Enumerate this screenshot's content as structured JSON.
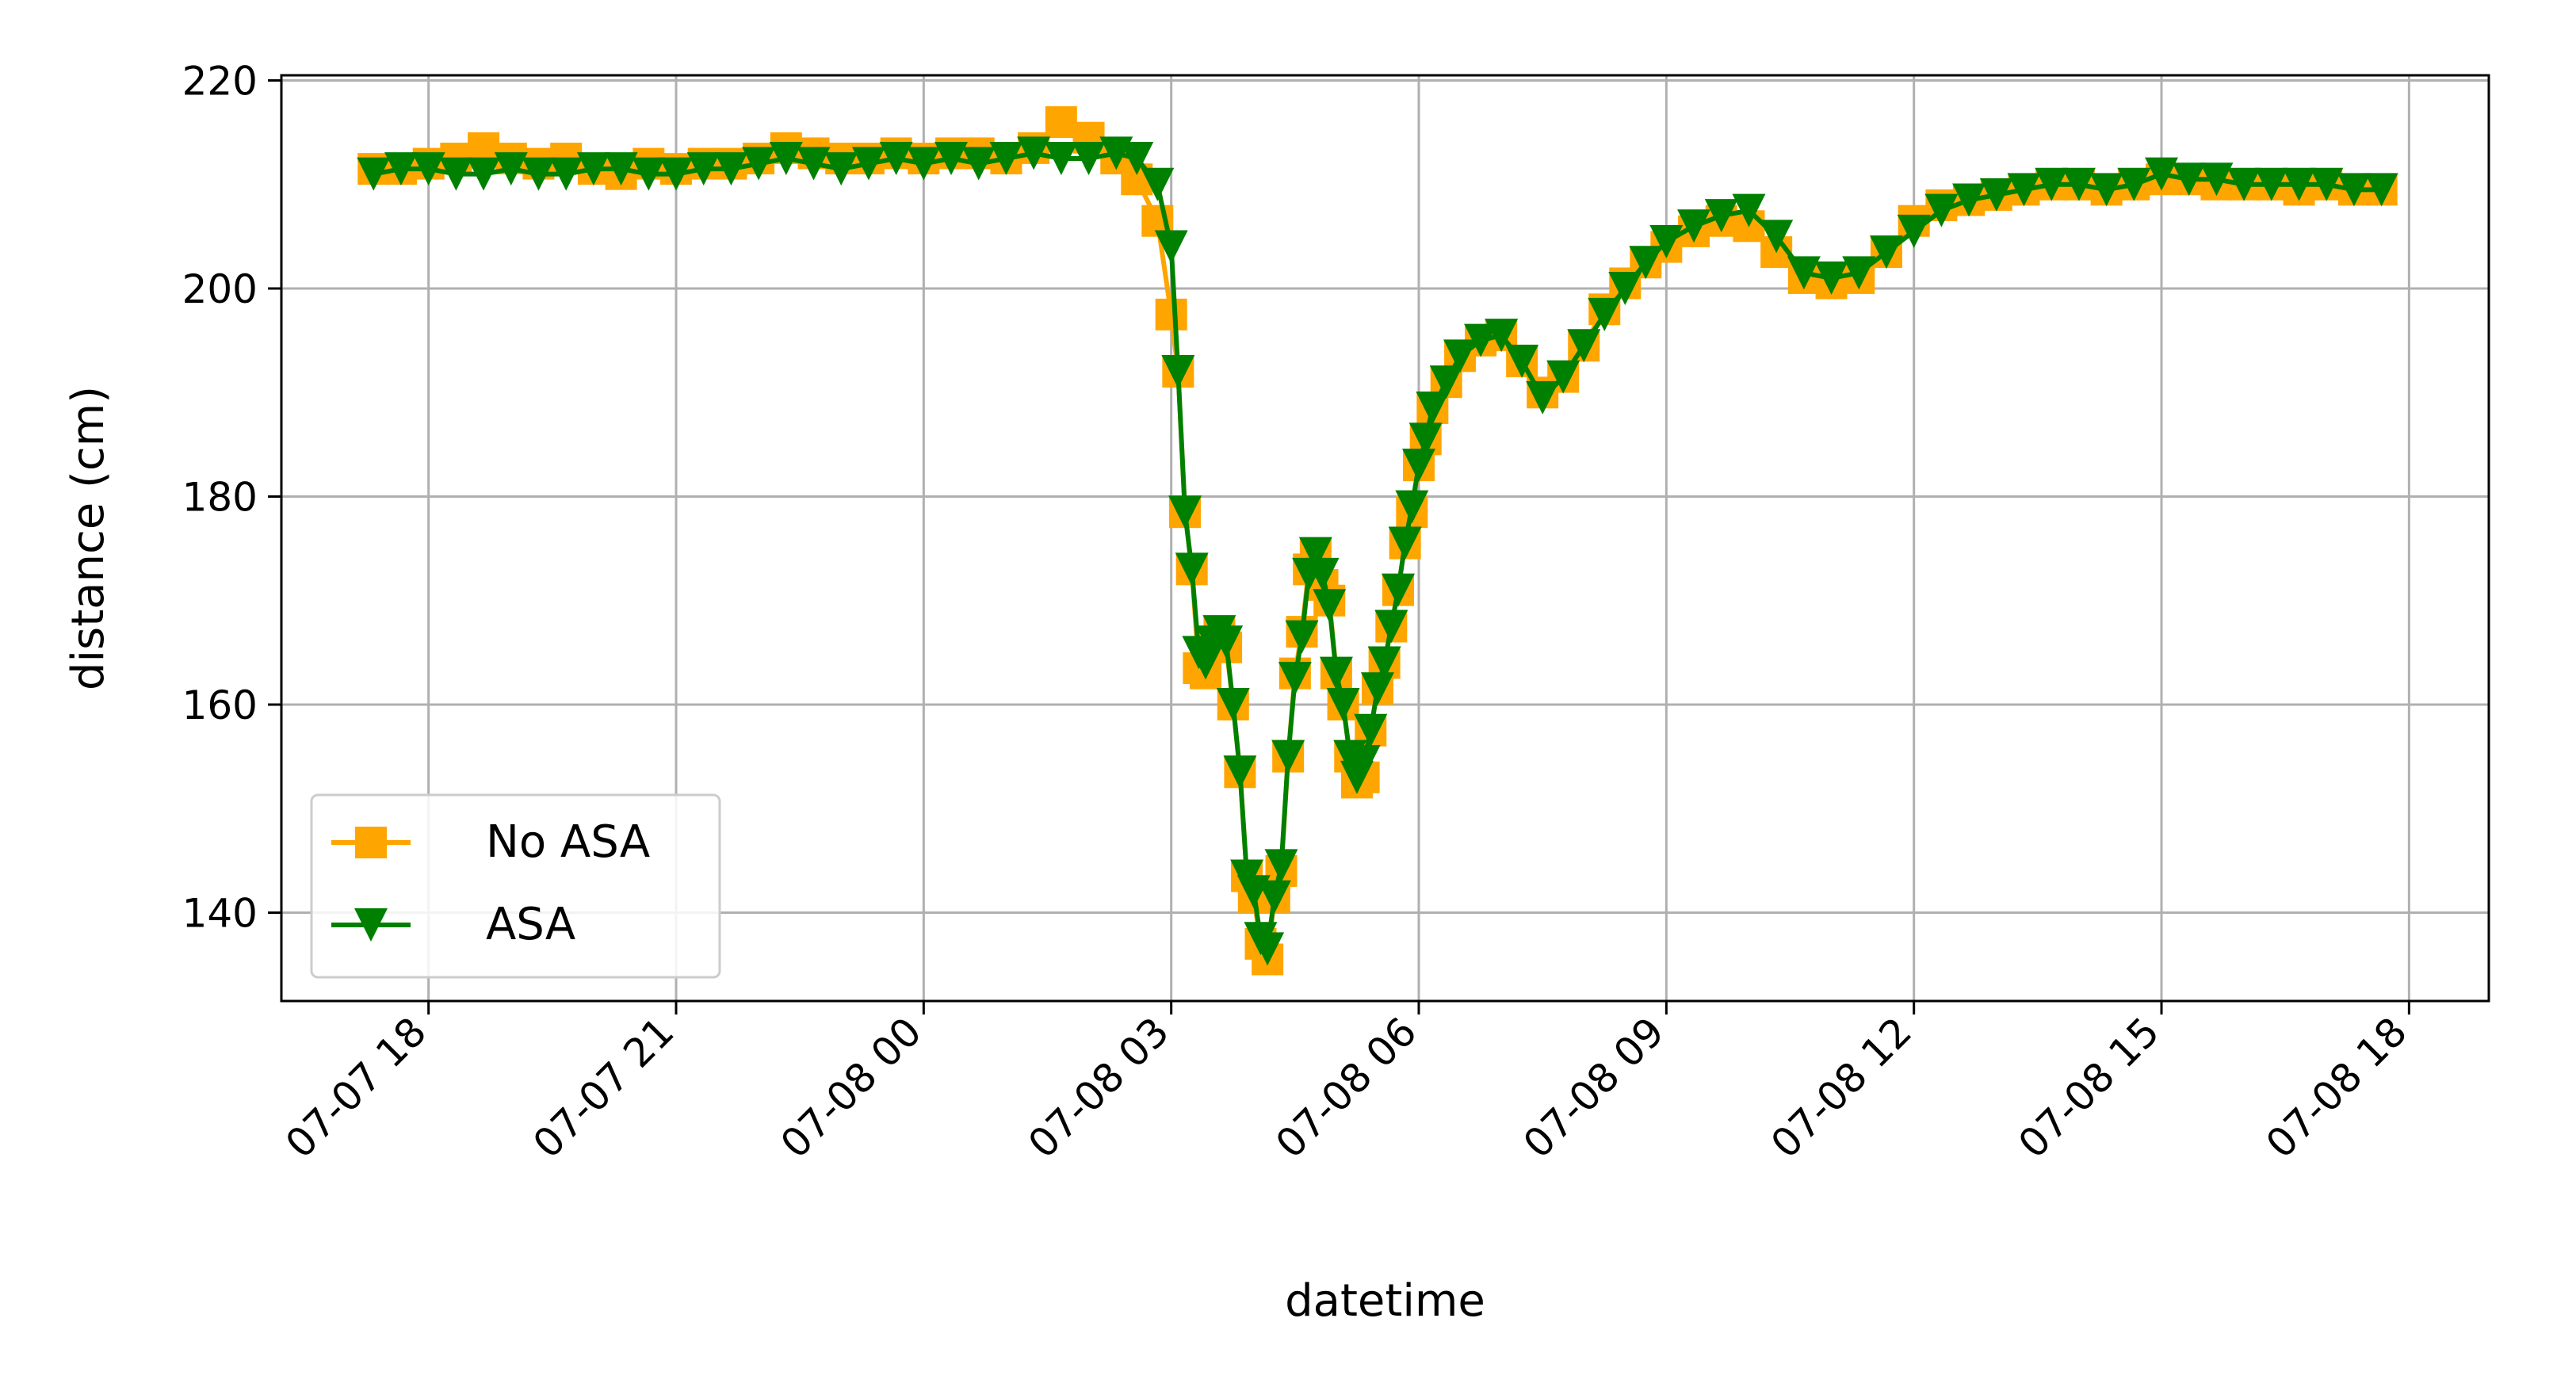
{
  "chart_data": {
    "type": "line",
    "title": "",
    "xlabel": "datetime",
    "ylabel": "distance (cm)",
    "xlim": [
      "2023-07-07 16:13",
      "2023-07-08 18:58"
    ],
    "ylim": [
      131.5,
      220.5
    ],
    "grid": true,
    "legend_position": "lower-left",
    "x_ticks": [
      "2023-07-07 18:00",
      "2023-07-07 21:00",
      "2023-07-08 00:00",
      "2023-07-08 03:00",
      "2023-07-08 06:00",
      "2023-07-08 09:00",
      "2023-07-08 12:00",
      "2023-07-08 15:00",
      "2023-07-08 18:00"
    ],
    "x_tick_labels": [
      "07-07 18",
      "07-07 21",
      "07-08 00",
      "07-08 03",
      "07-08 06",
      "07-08 09",
      "07-08 12",
      "07-08 15",
      "07-08 18"
    ],
    "y_ticks": [
      140,
      160,
      180,
      200,
      220
    ],
    "y_tick_labels": [
      "140",
      "160",
      "180",
      "200",
      "220"
    ],
    "series": [
      {
        "name": "No ASA",
        "color": "#ffa500",
        "marker": "square",
        "x": [
          "2023-07-07 17:20",
          "2023-07-07 17:40",
          "2023-07-07 18:00",
          "2023-07-07 18:20",
          "2023-07-07 18:40",
          "2023-07-07 19:00",
          "2023-07-07 19:20",
          "2023-07-07 19:40",
          "2023-07-07 20:00",
          "2023-07-07 20:20",
          "2023-07-07 20:40",
          "2023-07-07 21:00",
          "2023-07-07 21:20",
          "2023-07-07 21:40",
          "2023-07-07 22:00",
          "2023-07-07 22:20",
          "2023-07-07 22:40",
          "2023-07-07 23:00",
          "2023-07-07 23:20",
          "2023-07-07 23:40",
          "2023-07-08 00:00",
          "2023-07-08 00:20",
          "2023-07-08 00:40",
          "2023-07-08 01:00",
          "2023-07-08 01:20",
          "2023-07-08 01:40",
          "2023-07-08 02:00",
          "2023-07-08 02:20",
          "2023-07-08 02:35",
          "2023-07-08 02:50",
          "2023-07-08 03:00",
          "2023-07-08 03:05",
          "2023-07-08 03:10",
          "2023-07-08 03:15",
          "2023-07-08 03:20",
          "2023-07-08 03:25",
          "2023-07-08 03:30",
          "2023-07-08 03:35",
          "2023-07-08 03:40",
          "2023-07-08 03:45",
          "2023-07-08 03:50",
          "2023-07-08 03:55",
          "2023-07-08 04:00",
          "2023-07-08 04:05",
          "2023-07-08 04:10",
          "2023-07-08 04:15",
          "2023-07-08 04:20",
          "2023-07-08 04:25",
          "2023-07-08 04:30",
          "2023-07-08 04:35",
          "2023-07-08 04:40",
          "2023-07-08 04:45",
          "2023-07-08 04:50",
          "2023-07-08 04:55",
          "2023-07-08 05:00",
          "2023-07-08 05:05",
          "2023-07-08 05:10",
          "2023-07-08 05:15",
          "2023-07-08 05:20",
          "2023-07-08 05:25",
          "2023-07-08 05:30",
          "2023-07-08 05:35",
          "2023-07-08 05:40",
          "2023-07-08 05:45",
          "2023-07-08 05:50",
          "2023-07-08 05:55",
          "2023-07-08 06:00",
          "2023-07-08 06:05",
          "2023-07-08 06:10",
          "2023-07-08 06:20",
          "2023-07-08 06:30",
          "2023-07-08 06:45",
          "2023-07-08 07:00",
          "2023-07-08 07:15",
          "2023-07-08 07:30",
          "2023-07-08 07:45",
          "2023-07-08 08:00",
          "2023-07-08 08:15",
          "2023-07-08 08:30",
          "2023-07-08 08:45",
          "2023-07-08 09:00",
          "2023-07-08 09:20",
          "2023-07-08 09:40",
          "2023-07-08 10:00",
          "2023-07-08 10:20",
          "2023-07-08 10:40",
          "2023-07-08 11:00",
          "2023-07-08 11:20",
          "2023-07-08 11:40",
          "2023-07-08 12:00",
          "2023-07-08 12:20",
          "2023-07-08 12:40",
          "2023-07-08 13:00",
          "2023-07-08 13:20",
          "2023-07-08 13:40",
          "2023-07-08 14:00",
          "2023-07-08 14:20",
          "2023-07-08 14:40",
          "2023-07-08 15:00",
          "2023-07-08 15:20",
          "2023-07-08 15:40",
          "2023-07-08 16:00",
          "2023-07-08 16:20",
          "2023-07-08 16:40",
          "2023-07-08 17:00",
          "2023-07-08 17:20",
          "2023-07-08 17:40"
        ],
        "y": [
          211.5,
          211.5,
          212,
          212.5,
          213.5,
          212.5,
          212,
          212.5,
          211.5,
          211,
          212,
          211.5,
          212,
          212,
          212.5,
          213.5,
          213,
          212.5,
          212.5,
          213,
          212.5,
          213,
          213,
          212.5,
          213.5,
          216,
          214.5,
          212.5,
          210.5,
          206.5,
          197.5,
          192,
          178.5,
          173,
          163.5,
          163,
          166,
          167,
          165.5,
          160,
          153.5,
          143.5,
          141.5,
          137,
          135.5,
          141.5,
          144,
          155,
          163,
          167,
          173,
          174.5,
          171.5,
          170,
          163,
          160,
          155,
          152.5,
          153,
          157.5,
          161.5,
          164,
          167.5,
          171,
          175.5,
          178.5,
          183,
          185.5,
          188.5,
          191,
          193.5,
          195,
          195.5,
          193,
          190,
          191.5,
          194.5,
          198,
          200.5,
          202.5,
          204,
          205.5,
          206.5,
          206,
          203.5,
          201,
          200.5,
          201,
          203.5,
          206.5,
          208,
          208.5,
          209,
          209.5,
          210,
          210,
          209.5,
          210,
          210.5,
          210.5,
          210,
          210,
          210,
          209.5,
          210,
          209.5,
          209.5
        ]
      },
      {
        "name": "ASA",
        "color": "#008000",
        "marker": "triangle-down",
        "x": [
          "2023-07-07 17:20",
          "2023-07-07 17:40",
          "2023-07-07 18:00",
          "2023-07-07 18:20",
          "2023-07-07 18:40",
          "2023-07-07 19:00",
          "2023-07-07 19:20",
          "2023-07-07 19:40",
          "2023-07-07 20:00",
          "2023-07-07 20:20",
          "2023-07-07 20:40",
          "2023-07-07 21:00",
          "2023-07-07 21:20",
          "2023-07-07 21:40",
          "2023-07-07 22:00",
          "2023-07-07 22:20",
          "2023-07-07 22:40",
          "2023-07-07 23:00",
          "2023-07-07 23:20",
          "2023-07-07 23:40",
          "2023-07-08 00:00",
          "2023-07-08 00:20",
          "2023-07-08 00:40",
          "2023-07-08 01:00",
          "2023-07-08 01:20",
          "2023-07-08 01:40",
          "2023-07-08 02:00",
          "2023-07-08 02:20",
          "2023-07-08 02:35",
          "2023-07-08 02:50",
          "2023-07-08 03:00",
          "2023-07-08 03:05",
          "2023-07-08 03:10",
          "2023-07-08 03:15",
          "2023-07-08 03:20",
          "2023-07-08 03:25",
          "2023-07-08 03:30",
          "2023-07-08 03:35",
          "2023-07-08 03:40",
          "2023-07-08 03:45",
          "2023-07-08 03:50",
          "2023-07-08 03:55",
          "2023-07-08 04:00",
          "2023-07-08 04:05",
          "2023-07-08 04:10",
          "2023-07-08 04:15",
          "2023-07-08 04:20",
          "2023-07-08 04:25",
          "2023-07-08 04:30",
          "2023-07-08 04:35",
          "2023-07-08 04:40",
          "2023-07-08 04:45",
          "2023-07-08 04:50",
          "2023-07-08 04:55",
          "2023-07-08 05:00",
          "2023-07-08 05:05",
          "2023-07-08 05:10",
          "2023-07-08 05:15",
          "2023-07-08 05:20",
          "2023-07-08 05:25",
          "2023-07-08 05:30",
          "2023-07-08 05:35",
          "2023-07-08 05:40",
          "2023-07-08 05:45",
          "2023-07-08 05:50",
          "2023-07-08 05:55",
          "2023-07-08 06:00",
          "2023-07-08 06:05",
          "2023-07-08 06:10",
          "2023-07-08 06:20",
          "2023-07-08 06:30",
          "2023-07-08 06:45",
          "2023-07-08 07:00",
          "2023-07-08 07:15",
          "2023-07-08 07:30",
          "2023-07-08 07:45",
          "2023-07-08 08:00",
          "2023-07-08 08:15",
          "2023-07-08 08:30",
          "2023-07-08 08:45",
          "2023-07-08 09:00",
          "2023-07-08 09:20",
          "2023-07-08 09:40",
          "2023-07-08 10:00",
          "2023-07-08 10:20",
          "2023-07-08 10:40",
          "2023-07-08 11:00",
          "2023-07-08 11:20",
          "2023-07-08 11:40",
          "2023-07-08 12:00",
          "2023-07-08 12:20",
          "2023-07-08 12:40",
          "2023-07-08 13:00",
          "2023-07-08 13:20",
          "2023-07-08 13:40",
          "2023-07-08 14:00",
          "2023-07-08 14:20",
          "2023-07-08 14:40",
          "2023-07-08 15:00",
          "2023-07-08 15:20",
          "2023-07-08 15:40",
          "2023-07-08 16:00",
          "2023-07-08 16:20",
          "2023-07-08 16:40",
          "2023-07-08 17:00",
          "2023-07-08 17:20",
          "2023-07-08 17:40"
        ],
        "y": [
          211,
          211.5,
          211.5,
          211,
          211,
          211.5,
          211,
          211,
          211.5,
          211.5,
          211,
          211,
          211.5,
          211.5,
          212,
          212.5,
          212,
          211.5,
          212,
          212.5,
          212,
          212.5,
          212,
          212.5,
          213,
          212.5,
          212.5,
          213,
          212.5,
          210,
          204,
          192,
          178.5,
          173,
          165,
          164,
          166,
          167,
          166,
          160,
          153.5,
          143.5,
          142,
          137.5,
          136.5,
          141.5,
          144.5,
          155,
          162.5,
          166.5,
          172.5,
          174.5,
          172.5,
          169.5,
          163,
          160,
          155,
          153,
          154.5,
          157.5,
          161.5,
          164,
          167.5,
          171,
          175.5,
          179,
          183,
          185.5,
          188.5,
          191,
          193.5,
          195,
          195.5,
          193,
          189.5,
          191.5,
          194.5,
          197.5,
          200,
          202.5,
          204.5,
          206,
          207,
          207.5,
          205,
          201.5,
          201,
          201.5,
          203.5,
          205.5,
          207.5,
          208.5,
          209,
          209.5,
          210,
          210,
          209.5,
          210,
          211,
          210.5,
          210.5,
          210,
          210,
          210,
          210,
          209.5,
          209.5
        ]
      }
    ]
  }
}
